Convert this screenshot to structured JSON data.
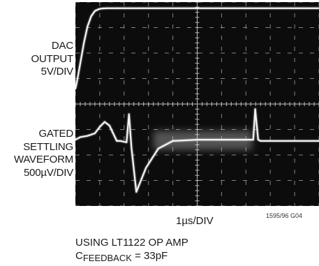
{
  "labels": {
    "dac": [
      "DAC",
      "OUTPUT",
      "5V/DIV"
    ],
    "settling": [
      "GATED",
      "SETTLING",
      "WAVEFORM",
      "500µV/DIV"
    ]
  },
  "xlabel": "1µs/DIV",
  "figure_id": "1595/96 G04",
  "note": {
    "line1": "USING LT1122 OP AMP",
    "line2_prefix": "C",
    "line2_sub": "FEEDBACK",
    "line2_suffix": " = 33pF"
  },
  "chart_data": {
    "type": "line",
    "grid": {
      "divisions_x": 10,
      "divisions_y": 8,
      "visible": true
    },
    "x_units": "div",
    "y_units": "div",
    "xlim": [
      0,
      10
    ],
    "ylim": [
      0,
      8
    ],
    "series": [
      {
        "x": [
          0,
          0.05,
          0.2,
          0.35,
          0.5,
          0.65,
          0.8,
          0.95,
          1.1,
          1.3,
          1.6,
          10
        ],
        "y": [
          4.6,
          4.8,
          5.6,
          6.4,
          7.05,
          7.45,
          7.65,
          7.72,
          7.75,
          7.76,
          7.76,
          7.76
        ]
      },
      {
        "x": [
          0,
          0.2,
          0.5,
          0.8,
          1.0,
          1.2,
          1.4,
          1.55,
          1.7,
          1.85,
          2.1,
          2.2,
          2.3,
          2.5,
          2.9,
          3.4,
          4.0,
          5.0,
          6.0,
          7.0,
          7.3,
          7.38,
          7.5,
          7.6,
          10
        ],
        "y": [
          2.6,
          2.7,
          2.75,
          2.85,
          3.1,
          3.3,
          3.15,
          2.85,
          2.55,
          2.55,
          2.5,
          3.6,
          2.3,
          0.55,
          1.5,
          2.25,
          2.55,
          2.6,
          2.6,
          2.6,
          2.6,
          3.8,
          2.6,
          2.55,
          2.55
        ]
      }
    ]
  }
}
